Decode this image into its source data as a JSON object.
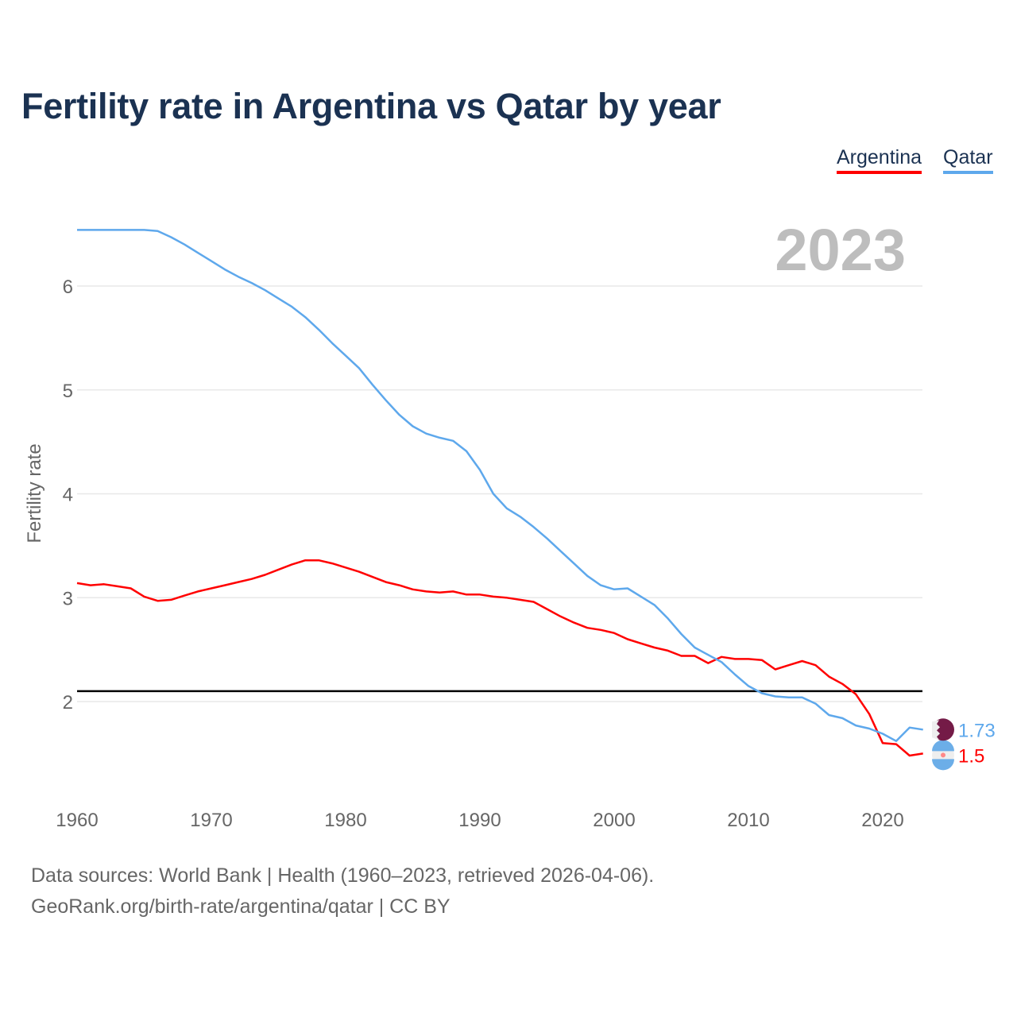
{
  "chart_data": {
    "type": "line",
    "title": "Fertility rate in Argentina vs Qatar by year",
    "ylabel": "Fertility rate",
    "xlabel": "",
    "xlim": [
      1960,
      2023
    ],
    "ylim": [
      1.0,
      6.8
    ],
    "x_ticks": [
      1960,
      1970,
      1980,
      1990,
      2000,
      2010,
      2020
    ],
    "y_ticks": [
      2,
      3,
      4,
      5,
      6
    ],
    "grid": true,
    "legend_position": "top-right",
    "year_label": "2023",
    "reference_line": 2.1,
    "x": [
      1960,
      1961,
      1962,
      1963,
      1964,
      1965,
      1966,
      1967,
      1968,
      1969,
      1970,
      1971,
      1972,
      1973,
      1974,
      1975,
      1976,
      1977,
      1978,
      1979,
      1980,
      1981,
      1982,
      1983,
      1984,
      1985,
      1986,
      1987,
      1988,
      1989,
      1990,
      1991,
      1992,
      1993,
      1994,
      1995,
      1996,
      1997,
      1998,
      1999,
      2000,
      2001,
      2002,
      2003,
      2004,
      2005,
      2006,
      2007,
      2008,
      2009,
      2010,
      2011,
      2012,
      2013,
      2014,
      2015,
      2016,
      2017,
      2018,
      2019,
      2020,
      2021,
      2022,
      2023
    ],
    "series": [
      {
        "name": "Argentina",
        "color": "#ff0000",
        "end_label": "1.5",
        "values": [
          3.14,
          3.12,
          3.13,
          3.11,
          3.09,
          3.01,
          2.97,
          2.98,
          3.02,
          3.06,
          3.09,
          3.12,
          3.15,
          3.18,
          3.22,
          3.27,
          3.32,
          3.36,
          3.36,
          3.33,
          3.29,
          3.25,
          3.2,
          3.15,
          3.12,
          3.08,
          3.06,
          3.05,
          3.06,
          3.03,
          3.03,
          3.01,
          3.0,
          2.98,
          2.96,
          2.89,
          2.82,
          2.76,
          2.71,
          2.69,
          2.66,
          2.6,
          2.56,
          2.52,
          2.49,
          2.44,
          2.44,
          2.37,
          2.43,
          2.41,
          2.41,
          2.4,
          2.31,
          2.35,
          2.39,
          2.35,
          2.24,
          2.17,
          2.07,
          1.88,
          1.6,
          1.59,
          1.48,
          1.5
        ]
      },
      {
        "name": "Qatar",
        "color": "#5ea8ec",
        "end_label": "1.73",
        "values": [
          6.54,
          6.54,
          6.54,
          6.54,
          6.54,
          6.54,
          6.53,
          6.47,
          6.4,
          6.32,
          6.24,
          6.16,
          6.09,
          6.03,
          5.96,
          5.88,
          5.8,
          5.7,
          5.58,
          5.45,
          5.33,
          5.21,
          5.05,
          4.9,
          4.76,
          4.65,
          4.58,
          4.54,
          4.51,
          4.41,
          4.23,
          4.0,
          3.86,
          3.78,
          3.68,
          3.57,
          3.45,
          3.33,
          3.21,
          3.12,
          3.08,
          3.09,
          3.01,
          2.93,
          2.8,
          2.65,
          2.52,
          2.45,
          2.38,
          2.26,
          2.15,
          2.08,
          2.05,
          2.04,
          2.04,
          1.98,
          1.87,
          1.84,
          1.77,
          1.74,
          1.69,
          1.62,
          1.75,
          1.73
        ]
      }
    ]
  },
  "footer": {
    "line1": "Data sources: World Bank | Health (1960–2023, retrieved 2026-04-06).",
    "line2": "GeoRank.org/birth-rate/argentina/qatar | CC BY"
  }
}
